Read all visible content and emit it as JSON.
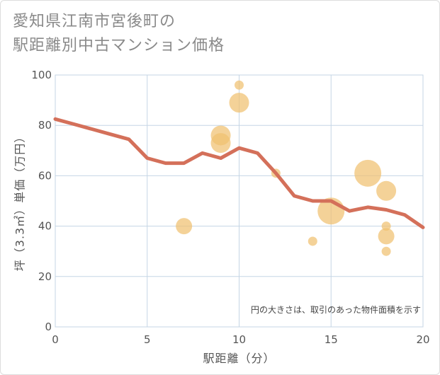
{
  "title": {
    "line1": "愛知県江南市宮後町の",
    "line2": "駅距離別中古マンション価格"
  },
  "chart_data": {
    "type": "scatter",
    "xlabel": "駅距離（分）",
    "ylabel": "坪（3.3㎡）単価（万円）",
    "xlim": [
      0,
      20
    ],
    "ylim": [
      0,
      100
    ],
    "xticks": [
      0,
      5,
      10,
      15,
      20
    ],
    "yticks": [
      0,
      20,
      40,
      60,
      80,
      100
    ],
    "grid": true,
    "annotation": "円の大きさは、取引のあった物件面積を示す",
    "colors": {
      "bubble": "#f0c070",
      "line": "#d4705a",
      "grid": "#c5d5e5"
    },
    "series": [
      {
        "type": "bubble",
        "points": [
          {
            "x": 7,
            "y": 40,
            "size": 3
          },
          {
            "x": 9,
            "y": 76,
            "size": 4
          },
          {
            "x": 9,
            "y": 73,
            "size": 4
          },
          {
            "x": 10,
            "y": 96,
            "size": 1
          },
          {
            "x": 10,
            "y": 89,
            "size": 4
          },
          {
            "x": 12,
            "y": 61,
            "size": 1
          },
          {
            "x": 14,
            "y": 34,
            "size": 1
          },
          {
            "x": 15,
            "y": 46,
            "size": 6
          },
          {
            "x": 17,
            "y": 61,
            "size": 6
          },
          {
            "x": 18,
            "y": 54,
            "size": 4
          },
          {
            "x": 18,
            "y": 40,
            "size": 1
          },
          {
            "x": 18,
            "y": 36,
            "size": 3
          },
          {
            "x": 18,
            "y": 30,
            "size": 1
          }
        ]
      },
      {
        "type": "line",
        "x": [
          0,
          1,
          2,
          3,
          4,
          5,
          6,
          7,
          8,
          9,
          10,
          11,
          12,
          13,
          14,
          15,
          16,
          17,
          18,
          19,
          20
        ],
        "y": [
          82.5,
          80.5,
          78.5,
          76.5,
          74.5,
          67,
          65,
          65,
          69,
          67,
          71,
          69,
          61,
          52,
          50,
          50,
          46,
          47.5,
          46.5,
          44.5,
          39.5
        ]
      }
    ]
  }
}
